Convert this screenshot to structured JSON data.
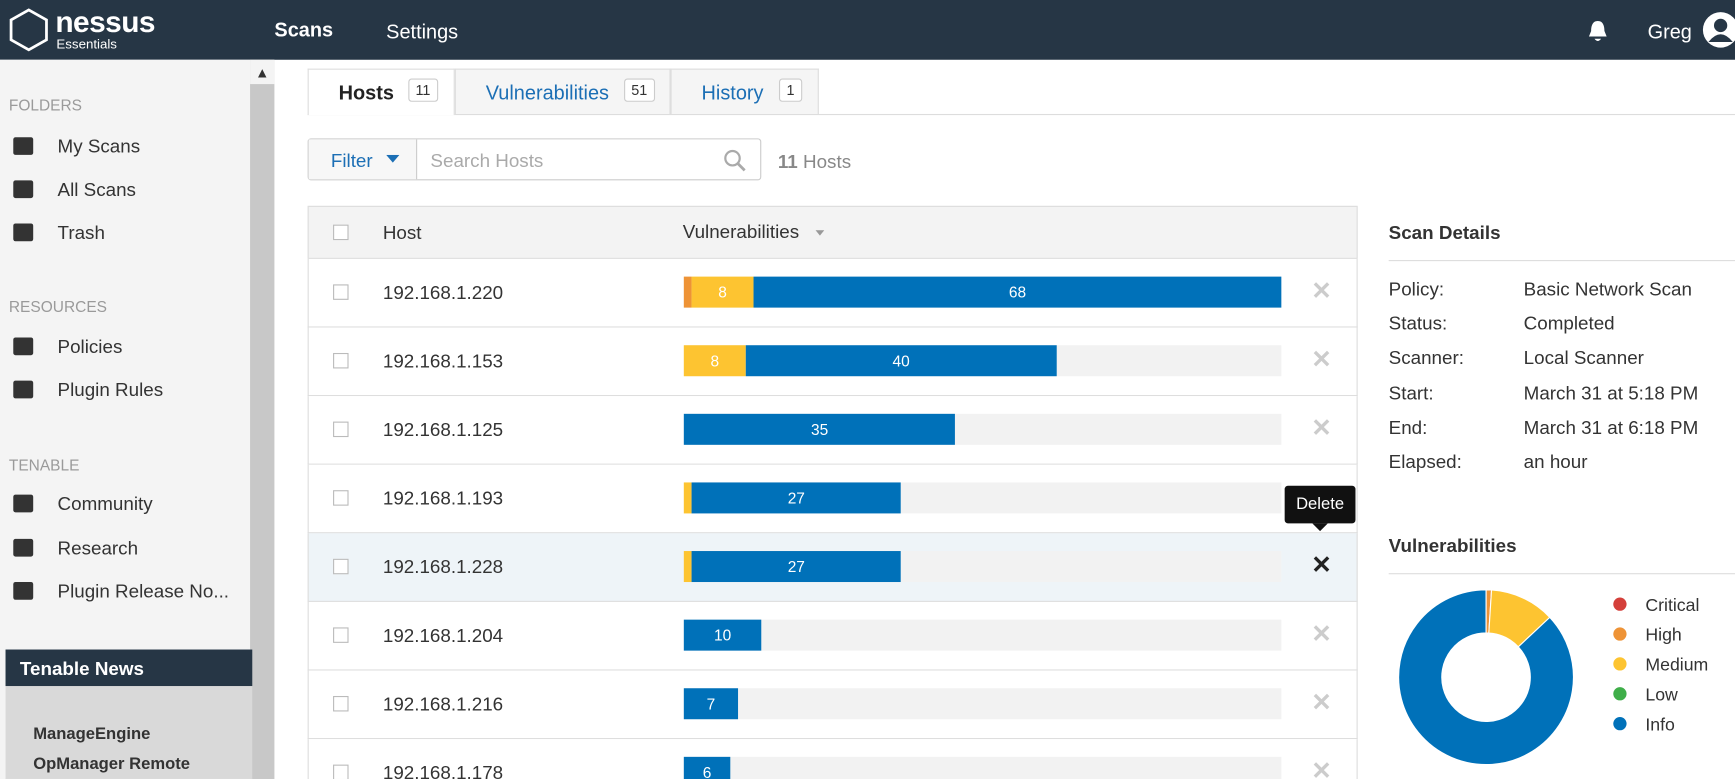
{
  "nav": {
    "brand": "nessus",
    "brand_sub": "Essentials",
    "items": [
      "Scans",
      "Settings"
    ],
    "user": "Greg"
  },
  "sidebar": {
    "sections": [
      {
        "title": "FOLDERS",
        "items": [
          "My Scans",
          "All Scans",
          "Trash"
        ]
      },
      {
        "title": "RESOURCES",
        "items": [
          "Policies",
          "Plugin Rules"
        ]
      },
      {
        "title": "TENABLE",
        "items": [
          "Community",
          "Research",
          "Plugin Release No..."
        ]
      }
    ],
    "news": {
      "title": "Tenable News",
      "headline": [
        "ManageEngine",
        "OpManager Remote"
      ]
    }
  },
  "tabs": [
    {
      "label": "Hosts",
      "count": 11
    },
    {
      "label": "Vulnerabilities",
      "count": 51
    },
    {
      "label": "History",
      "count": 1
    }
  ],
  "filter": {
    "button": "Filter",
    "placeholder": "Search Hosts",
    "count": 11,
    "count_label": "Hosts"
  },
  "table": {
    "columns": [
      "Host",
      "Vulnerabilities"
    ],
    "hovered_row": 4,
    "rows": [
      {
        "host": "192.168.1.220",
        "segments": [
          {
            "color": "#ee9336",
            "value": 1
          },
          {
            "color": "#fdc431",
            "value": 8
          },
          {
            "color": "#0071b9",
            "value": 68
          }
        ]
      },
      {
        "host": "192.168.1.153",
        "segments": [
          {
            "color": "#fdc431",
            "value": 8
          },
          {
            "color": "#0071b9",
            "value": 40
          }
        ]
      },
      {
        "host": "192.168.1.125",
        "segments": [
          {
            "color": "#0071b9",
            "value": 35
          }
        ]
      },
      {
        "host": "192.168.1.193",
        "segments": [
          {
            "color": "#fdc431",
            "value": 1
          },
          {
            "color": "#0071b9",
            "value": 27
          }
        ]
      },
      {
        "host": "192.168.1.228",
        "segments": [
          {
            "color": "#fdc431",
            "value": 1
          },
          {
            "color": "#0071b9",
            "value": 27
          }
        ]
      },
      {
        "host": "192.168.1.204",
        "segments": [
          {
            "color": "#0071b9",
            "value": 10
          }
        ]
      },
      {
        "host": "192.168.1.216",
        "segments": [
          {
            "color": "#0071b9",
            "value": 7
          }
        ]
      },
      {
        "host": "192.168.1.178",
        "segments": [
          {
            "color": "#0071b9",
            "value": 6
          }
        ]
      }
    ]
  },
  "tooltip": "Delete",
  "scan_details": {
    "title": "Scan Details",
    "fields": [
      [
        "Policy:",
        "Basic Network Scan"
      ],
      [
        "Status:",
        "Completed"
      ],
      [
        "Scanner:",
        "Local Scanner"
      ],
      [
        "Start:",
        "March 31 at 5:18 PM"
      ],
      [
        "End:",
        "March 31 at 6:18 PM"
      ],
      [
        "Elapsed:",
        "an hour"
      ]
    ]
  },
  "chart_data": {
    "type": "pie",
    "title": "Vulnerabilities",
    "categories": [
      "Critical",
      "High",
      "Medium",
      "Low",
      "Info"
    ],
    "values": [
      0,
      1,
      12,
      0,
      87
    ],
    "colors": [
      "#d43f3a",
      "#ee9336",
      "#fdc431",
      "#3fae49",
      "#0071b9"
    ]
  }
}
